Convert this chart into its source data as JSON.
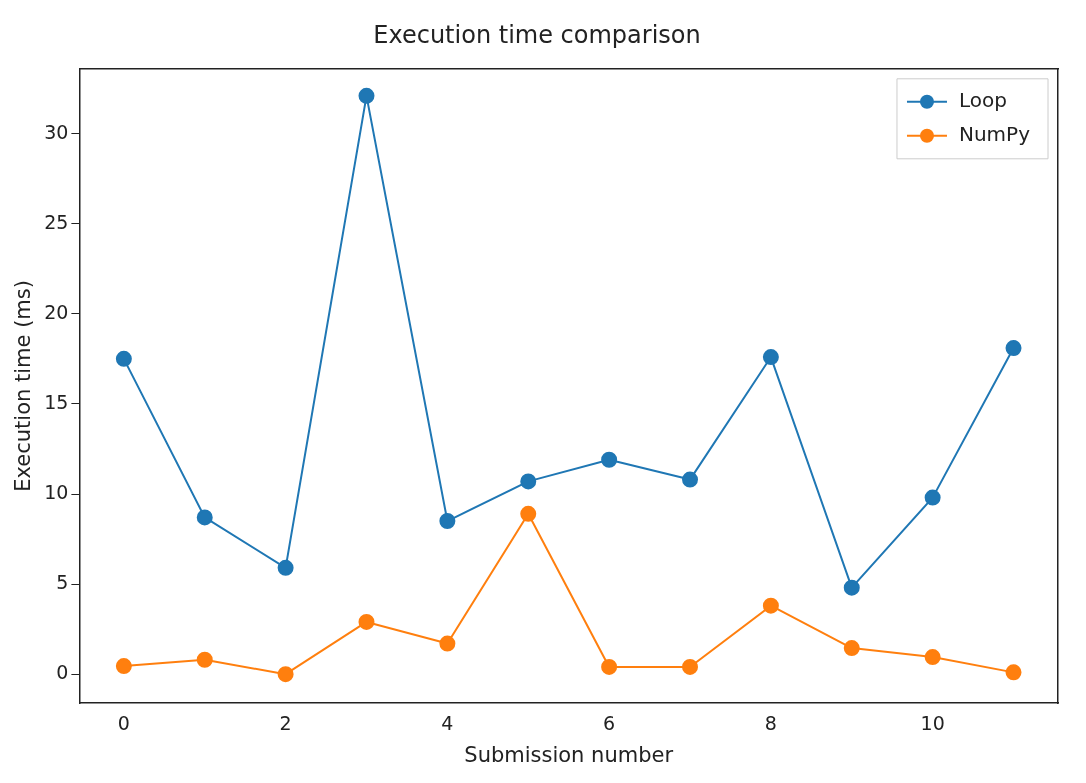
{
  "chart_data": {
    "type": "line",
    "title": "Execution time comparison",
    "xlabel": "Submission number",
    "ylabel": "Execution time (ms)",
    "x": [
      0,
      1,
      2,
      3,
      4,
      5,
      6,
      7,
      8,
      9,
      10,
      11
    ],
    "series": [
      {
        "name": "Loop",
        "color": "#1f77b4",
        "values": [
          17.5,
          8.7,
          5.9,
          32.1,
          8.5,
          10.7,
          11.9,
          10.8,
          17.6,
          4.8,
          9.8,
          18.1
        ]
      },
      {
        "name": "NumPy",
        "color": "#ff7f0e",
        "values": [
          0.45,
          0.8,
          0,
          2.9,
          1.7,
          8.9,
          0.4,
          0.4,
          3.8,
          1.45,
          0.95,
          0.1
        ]
      }
    ],
    "xlim": [
      -0.55,
      11.55
    ],
    "xticks": [
      0,
      2,
      4,
      6,
      8,
      10
    ],
    "ylim": [
      -1.6,
      33.6
    ],
    "yticks": [
      0,
      5,
      10,
      15,
      20,
      25,
      30
    ],
    "grid": false,
    "legend": "top right",
    "marker": "circle",
    "line_style": "solid"
  }
}
